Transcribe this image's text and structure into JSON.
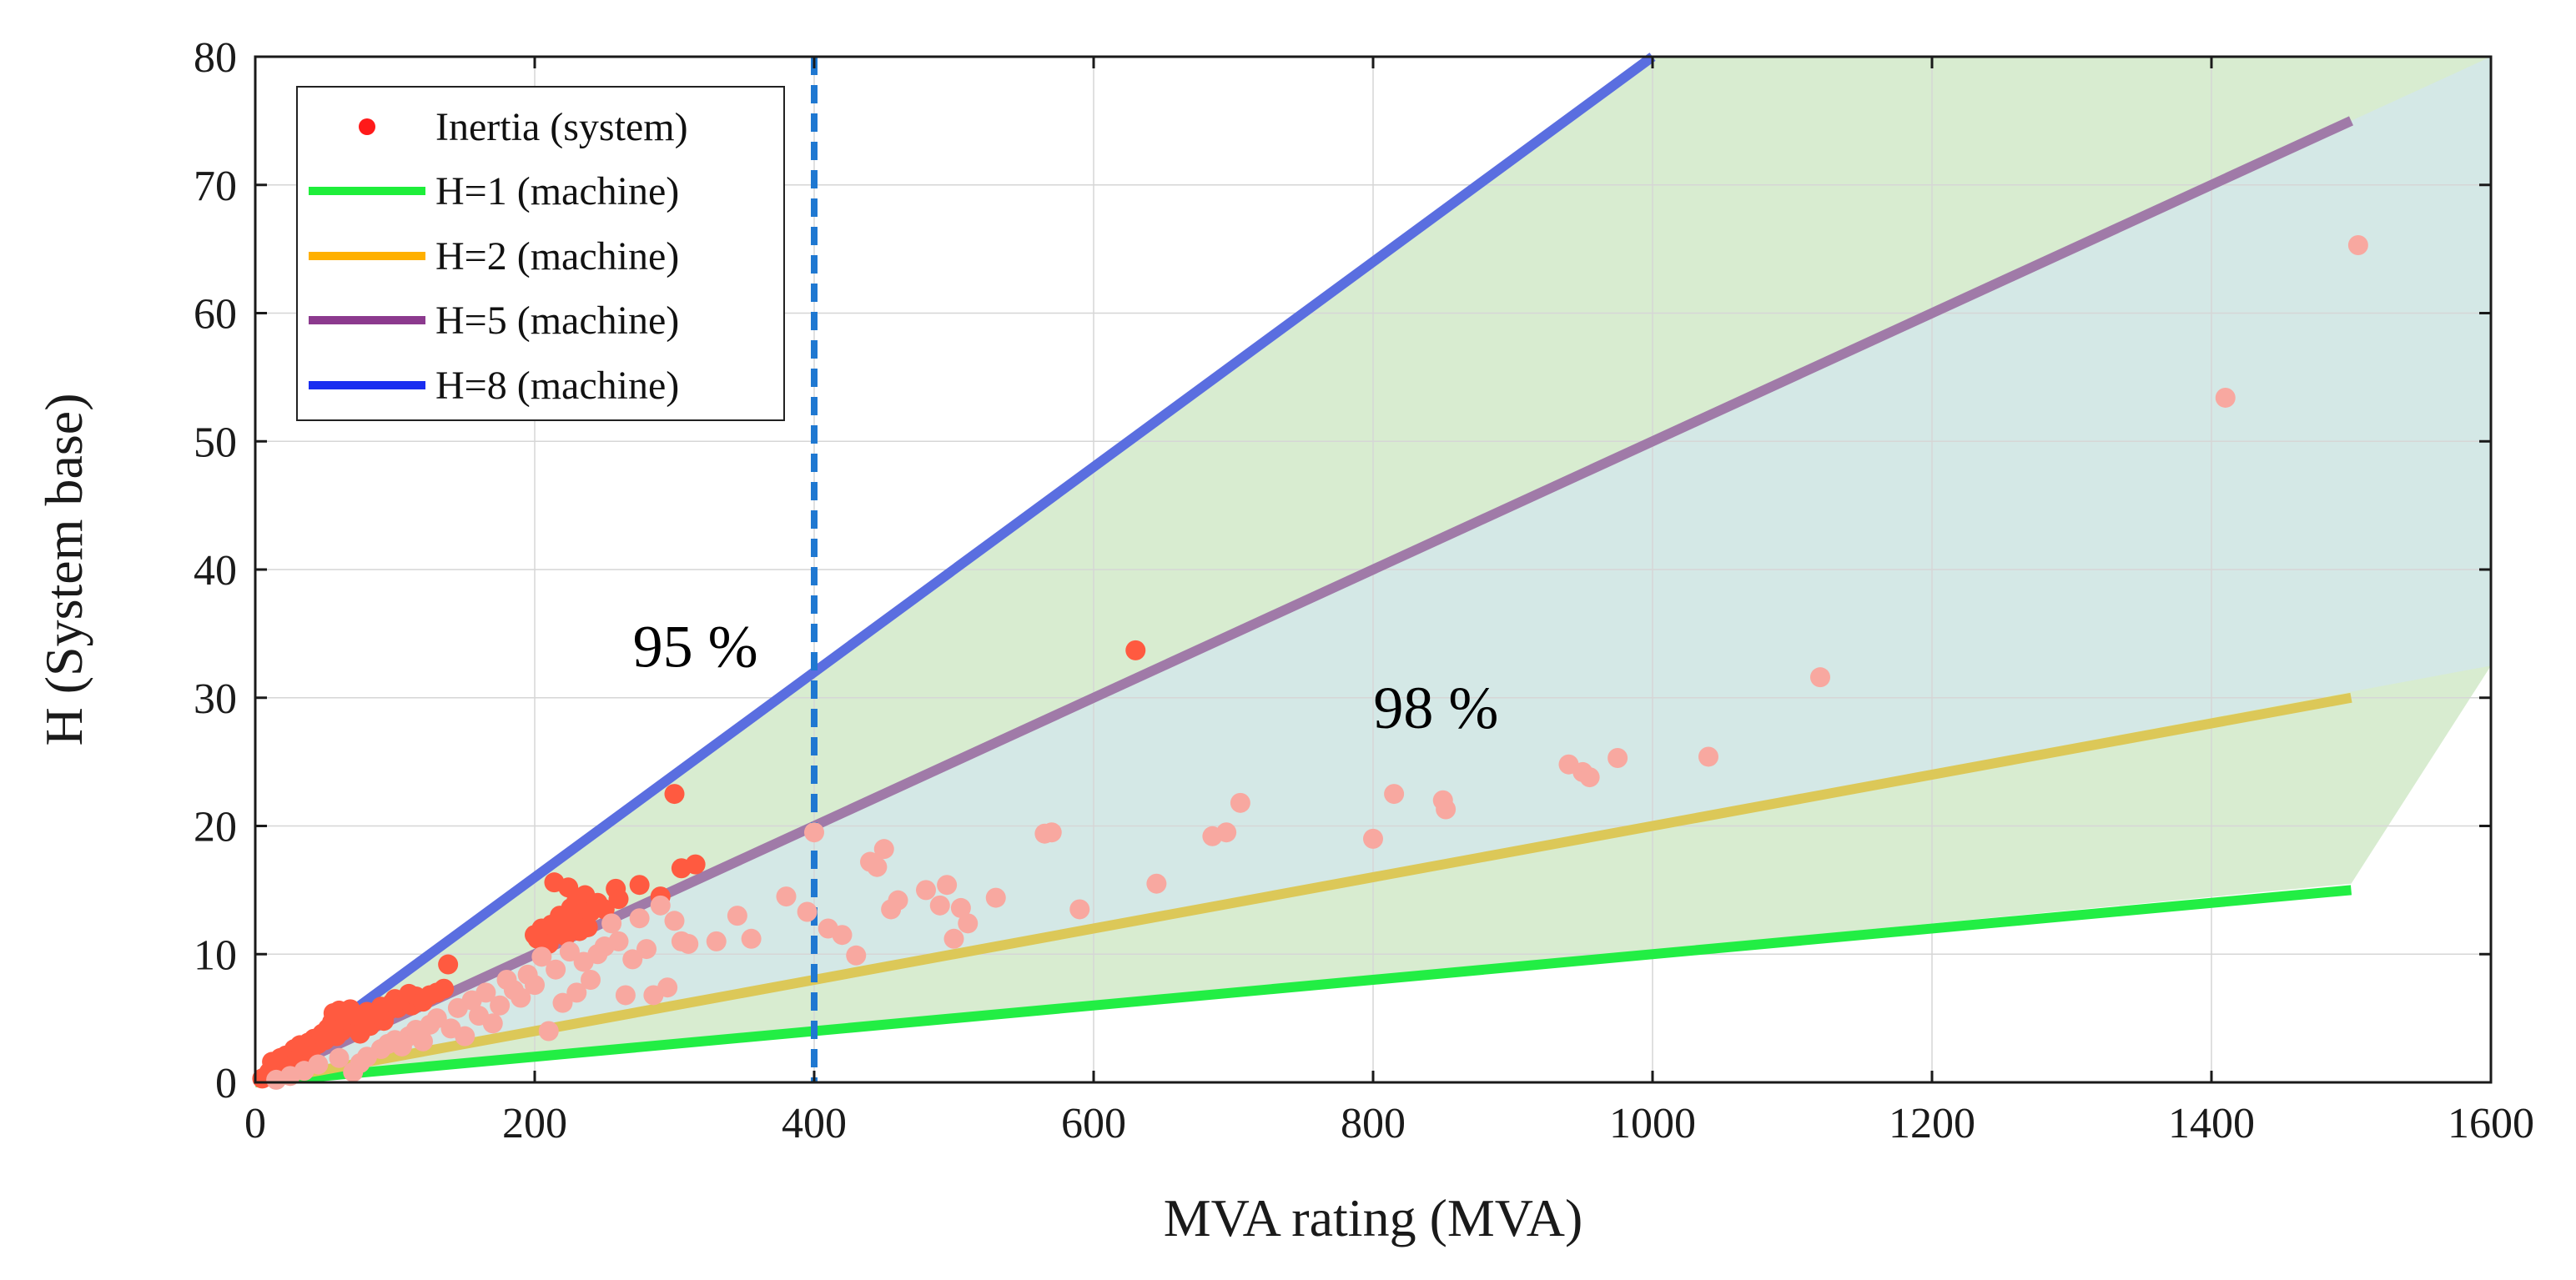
{
  "chart_data": {
    "type": "scatter",
    "xlabel": "MVA rating (MVA)",
    "ylabel": "H (System base)",
    "xlim": [
      0,
      1600
    ],
    "ylim": [
      0,
      80
    ],
    "xticks": [
      0,
      200,
      400,
      600,
      800,
      1000,
      1200,
      1400,
      1600
    ],
    "yticks": [
      0,
      10,
      20,
      30,
      40,
      50,
      60,
      70,
      80
    ],
    "grid": true,
    "legend_position": "top-left",
    "legend": [
      {
        "label": "Inertia (system)",
        "type": "marker",
        "color": "#ff1a1a"
      },
      {
        "label": "H=1 (machine)",
        "type": "line",
        "color": "#1eee3a"
      },
      {
        "label": "H=2 (machine)",
        "type": "line",
        "color": "#ffb000"
      },
      {
        "label": "H=5 (machine)",
        "type": "line",
        "color": "#8c3a8e"
      },
      {
        "label": "H=8 (machine)",
        "type": "line",
        "color": "#1a2ef0"
      }
    ],
    "lines": [
      {
        "name": "H=1 (machine)",
        "slope": 0.01,
        "x": [
          0,
          1500
        ],
        "color": "#1eee3a",
        "rendered_color": "#22ee44"
      },
      {
        "name": "H=2 (machine)",
        "slope": 0.02,
        "x": [
          0,
          1500
        ],
        "color": "#ffb000",
        "rendered_color": "#dcc858"
      },
      {
        "name": "H=5 (machine)",
        "slope": 0.05,
        "x": [
          0,
          1500
        ],
        "color": "#8c3a8e",
        "rendered_color": "#a07aa8"
      },
      {
        "name": "H=8 (machine)",
        "slope": 0.08,
        "x": [
          0,
          1000
        ],
        "color": "#1a2ef0",
        "rendered_color": "#5a6ee0"
      }
    ],
    "regions": [
      {
        "label": "95 %",
        "polygon": [
          [
            0,
            0
          ],
          [
            1000,
            80
          ],
          [
            1600,
            80
          ],
          [
            1600,
            32.5
          ],
          [
            1500,
            15.5
          ],
          [
            0,
            0
          ]
        ],
        "color": "#d8ecd0"
      },
      {
        "label": "98 %",
        "polygon": [
          [
            0,
            0
          ],
          [
            1600,
            80
          ],
          [
            1600,
            32.5
          ],
          [
            0,
            0
          ]
        ],
        "color": "#d4e8e6"
      }
    ],
    "vline": {
      "x": 400,
      "color": "#1f78d1",
      "style": "dashed"
    },
    "annotations": [
      {
        "text": "95 %",
        "x": 315,
        "y": 34
      },
      {
        "text": "98 %",
        "x": 845,
        "y": 29.2
      }
    ],
    "series": [
      {
        "name": "Inertia (system) - within 95%",
        "color": "#ff5a40",
        "points": [
          [
            5,
            0.3
          ],
          [
            8,
            0.5
          ],
          [
            10,
            0.8
          ],
          [
            12,
            1.6
          ],
          [
            15,
            1.2
          ],
          [
            18,
            1.9
          ],
          [
            20,
            0.6
          ],
          [
            22,
            2.1
          ],
          [
            25,
            1.4
          ],
          [
            28,
            2.6
          ],
          [
            30,
            1.8
          ],
          [
            32,
            2.9
          ],
          [
            35,
            2.2
          ],
          [
            38,
            3.1
          ],
          [
            40,
            2.5
          ],
          [
            42,
            3.4
          ],
          [
            45,
            3.0
          ],
          [
            48,
            3.8
          ],
          [
            50,
            3.3
          ],
          [
            52,
            4.2
          ],
          [
            55,
            4.7
          ],
          [
            56,
            5.4
          ],
          [
            58,
            3.6
          ],
          [
            60,
            5.6
          ],
          [
            62,
            4.0
          ],
          [
            65,
            4.9
          ],
          [
            68,
            5.7
          ],
          [
            70,
            4.3
          ],
          [
            72,
            5.2
          ],
          [
            75,
            3.8
          ],
          [
            78,
            4.6
          ],
          [
            80,
            5.5
          ],
          [
            82,
            4.4
          ],
          [
            85,
            5.0
          ],
          [
            88,
            5.3
          ],
          [
            90,
            5.9
          ],
          [
            92,
            4.8
          ],
          [
            95,
            5.6
          ],
          [
            98,
            6.2
          ],
          [
            100,
            6.5
          ],
          [
            102,
            5.8
          ],
          [
            105,
            6.1
          ],
          [
            108,
            6.4
          ],
          [
            110,
            6.9
          ],
          [
            112,
            6.0
          ],
          [
            115,
            6.7
          ],
          [
            120,
            6.3
          ],
          [
            125,
            6.8
          ],
          [
            130,
            7.0
          ],
          [
            135,
            7.3
          ],
          [
            138,
            9.2
          ],
          [
            200,
            11.5
          ],
          [
            202,
            11.2
          ],
          [
            205,
            12.0
          ],
          [
            208,
            11.6
          ],
          [
            210,
            10.8
          ],
          [
            212,
            12.3
          ],
          [
            214,
            15.6
          ],
          [
            216,
            11.9
          ],
          [
            218,
            13.0
          ],
          [
            220,
            12.5
          ],
          [
            222,
            11.4
          ],
          [
            224,
            15.2
          ],
          [
            226,
            13.6
          ],
          [
            228,
            12.8
          ],
          [
            230,
            14.2
          ],
          [
            232,
            11.8
          ],
          [
            234,
            13.9
          ],
          [
            236,
            14.6
          ],
          [
            238,
            12.1
          ],
          [
            240,
            13.3
          ],
          [
            245,
            14.0
          ],
          [
            250,
            13.5
          ],
          [
            258,
            15.1
          ],
          [
            260,
            14.3
          ],
          [
            275,
            15.4
          ],
          [
            290,
            14.5
          ],
          [
            300,
            22.5
          ],
          [
            305,
            16.7
          ],
          [
            315,
            17.0
          ],
          [
            630,
            33.7
          ]
        ]
      },
      {
        "name": "Inertia (system) - within 98%",
        "color": "#f8a8a0",
        "points": [
          [
            15,
            0.2
          ],
          [
            25,
            0.5
          ],
          [
            35,
            0.9
          ],
          [
            45,
            1.4
          ],
          [
            60,
            1.9
          ],
          [
            70,
            0.8
          ],
          [
            75,
            1.5
          ],
          [
            80,
            2.0
          ],
          [
            90,
            2.6
          ],
          [
            95,
            3.0
          ],
          [
            100,
            3.3
          ],
          [
            105,
            2.8
          ],
          [
            110,
            3.6
          ],
          [
            115,
            4.1
          ],
          [
            120,
            3.2
          ],
          [
            125,
            4.5
          ],
          [
            130,
            5.0
          ],
          [
            140,
            4.2
          ],
          [
            145,
            5.8
          ],
          [
            150,
            3.6
          ],
          [
            155,
            6.4
          ],
          [
            160,
            5.2
          ],
          [
            165,
            7.0
          ],
          [
            170,
            4.6
          ],
          [
            175,
            6.0
          ],
          [
            180,
            8.0
          ],
          [
            185,
            7.2
          ],
          [
            190,
            6.6
          ],
          [
            195,
            8.4
          ],
          [
            200,
            7.6
          ],
          [
            205,
            9.8
          ],
          [
            210,
            4.0
          ],
          [
            215,
            8.8
          ],
          [
            220,
            6.2
          ],
          [
            225,
            10.2
          ],
          [
            230,
            7.0
          ],
          [
            235,
            9.4
          ],
          [
            240,
            8.0
          ],
          [
            245,
            10.0
          ],
          [
            250,
            10.6
          ],
          [
            255,
            12.4
          ],
          [
            260,
            11.0
          ],
          [
            265,
            6.8
          ],
          [
            270,
            9.6
          ],
          [
            275,
            12.8
          ],
          [
            280,
            10.4
          ],
          [
            285,
            6.8
          ],
          [
            290,
            13.8
          ],
          [
            295,
            7.4
          ],
          [
            300,
            12.6
          ],
          [
            305,
            11.0
          ],
          [
            310,
            10.8
          ],
          [
            330,
            11.0
          ],
          [
            345,
            13.0
          ],
          [
            355,
            11.2
          ],
          [
            380,
            14.5
          ],
          [
            395,
            13.3
          ],
          [
            400,
            19.5
          ],
          [
            410,
            12.0
          ],
          [
            420,
            11.5
          ],
          [
            430,
            9.9
          ],
          [
            440,
            17.2
          ],
          [
            445,
            16.8
          ],
          [
            450,
            18.2
          ],
          [
            455,
            13.5
          ],
          [
            460,
            14.2
          ],
          [
            480,
            15.0
          ],
          [
            490,
            13.8
          ],
          [
            495,
            15.4
          ],
          [
            500,
            11.2
          ],
          [
            505,
            13.6
          ],
          [
            510,
            12.4
          ],
          [
            530,
            14.4
          ],
          [
            565,
            19.4
          ],
          [
            570,
            19.5
          ],
          [
            590,
            13.5
          ],
          [
            645,
            15.5
          ],
          [
            685,
            19.2
          ],
          [
            695,
            19.5
          ],
          [
            705,
            21.8
          ],
          [
            800,
            19.0
          ],
          [
            815,
            22.5
          ],
          [
            850,
            22.0
          ],
          [
            852,
            21.3
          ],
          [
            940,
            24.8
          ],
          [
            950,
            24.2
          ],
          [
            955,
            23.8
          ],
          [
            975,
            25.3
          ],
          [
            1040,
            25.4
          ],
          [
            1120,
            31.6
          ],
          [
            1410,
            53.4
          ],
          [
            1505,
            65.3
          ]
        ]
      }
    ]
  }
}
